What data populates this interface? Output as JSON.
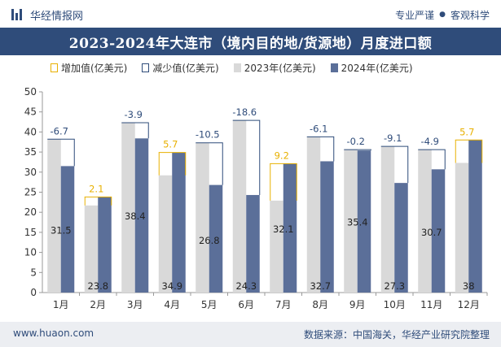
{
  "header": {
    "brand": "华经情报网",
    "tagline_left": "专业严谨",
    "tagline_right": "客观科学"
  },
  "title": "2023-2024年大连市（境内目的地/货源地）月度进口额",
  "legend": {
    "increase": "增加值(亿美元)",
    "decrease": "减少值(亿美元)",
    "y2023": "2023年(亿美元)",
    "y2024": "2024年(亿美元)"
  },
  "footer": {
    "url": "www.huaon.com",
    "source": "数据来源：中国海关，华经产业研究院整理"
  },
  "colors": {
    "header_bg": "#2f4c7a",
    "bar_2023": "#d9d9d9",
    "bar_2024": "#5b6f99",
    "increase": "#e8b000",
    "decrease": "#2f4c7a",
    "decrease_label": "#2f4c7a",
    "increase_label": "#e8b000"
  },
  "chart_data": {
    "type": "bar",
    "categories": [
      "1月",
      "2月",
      "3月",
      "4月",
      "5月",
      "6月",
      "7月",
      "8月",
      "9月",
      "10月",
      "11月",
      "12月"
    ],
    "series": [
      {
        "name": "2023年(亿美元)",
        "values": [
          38.2,
          21.7,
          42.3,
          29.2,
          37.3,
          42.9,
          22.9,
          38.8,
          35.6,
          36.4,
          35.6,
          32.3
        ]
      },
      {
        "name": "2024年(亿美元)",
        "values": [
          31.5,
          23.8,
          38.4,
          34.9,
          26.8,
          24.3,
          32.1,
          32.7,
          35.4,
          27.3,
          30.7,
          38
        ]
      }
    ],
    "changes": [
      "-6.7",
      "2.1",
      "-3.9",
      "5.7",
      "-10.5",
      "-18.6",
      "9.2",
      "-6.1",
      "-0.2",
      "-9.1",
      "-4.9",
      "5.7"
    ],
    "value_labels_2024": [
      "31.5",
      "23.8",
      "38.4",
      "34.9",
      "26.8",
      "24.3",
      "32.1",
      "32.7",
      "35.4",
      "27.3",
      "30.7",
      "38"
    ],
    "ylim": [
      0,
      50
    ],
    "yticks": [
      "0",
      "5",
      "10",
      "15",
      "20",
      "25",
      "30",
      "35",
      "40",
      "45",
      "50"
    ],
    "xlabel": "",
    "ylabel": "",
    "grid": false,
    "legend_position": "top"
  }
}
